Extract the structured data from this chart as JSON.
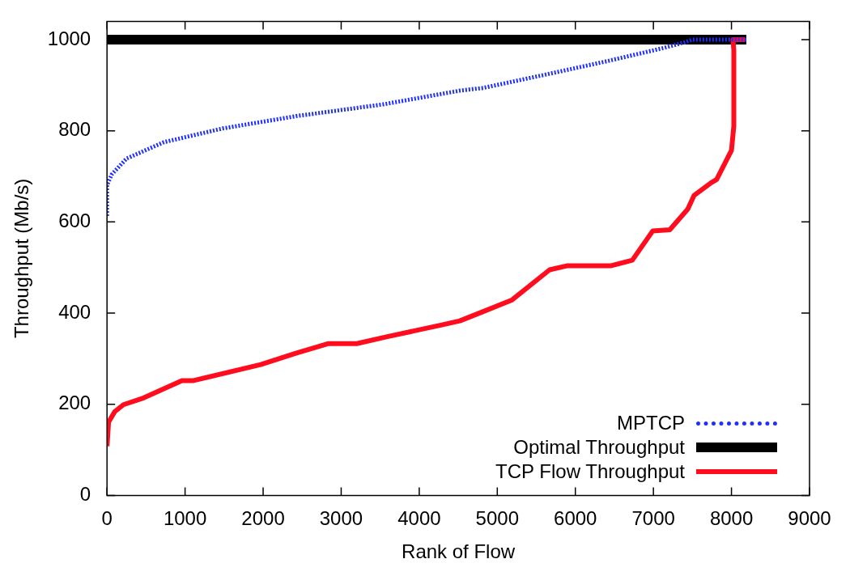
{
  "chart_data": {
    "type": "line",
    "xlabel": "Rank of Flow",
    "ylabel": "Throughput (Mb/s)",
    "xlim": [
      0,
      9000
    ],
    "xticks": [
      0,
      1000,
      2000,
      3000,
      4000,
      5000,
      6000,
      7000,
      8000,
      9000
    ],
    "ylim": [
      0,
      1040
    ],
    "yticks": [
      0,
      200,
      400,
      600,
      800,
      1000
    ],
    "grid": false,
    "legend": "bottom right",
    "series": [
      {
        "name": "MPTCP",
        "color": "#1f2fff",
        "line_style": "dotted",
        "x": [
          0,
          0,
          60,
          250,
          730,
          1480,
          2420,
          3540,
          4520,
          4820,
          5640,
          6390,
          7140,
          7400,
          7500,
          8200
        ],
        "values": [
          613,
          681,
          704,
          739,
          775,
          805,
          832,
          858,
          888,
          894,
          924,
          952,
          982,
          994,
          1000,
          1000
        ]
      },
      {
        "name": "Optimal Throughput",
        "color": "#000000",
        "line_style": "solid",
        "x": [
          0,
          8190
        ],
        "values": [
          1000,
          1000
        ]
      },
      {
        "name": "TCP Flow Throughput",
        "color": "#ff0d1f",
        "line_style": "solid",
        "x": [
          0,
          20,
          100,
          210,
          470,
          960,
          1110,
          1970,
          2420,
          2830,
          3200,
          3580,
          4290,
          4520,
          4800,
          5190,
          5670,
          5900,
          6460,
          6730,
          6990,
          7210,
          7440,
          7520,
          7740,
          7810,
          8000,
          8030,
          8030,
          8020,
          8170
        ],
        "values": [
          108,
          161,
          184,
          199,
          214,
          252,
          252,
          287,
          312,
          333,
          333,
          348,
          374,
          383,
          402,
          429,
          495,
          504,
          504,
          516,
          580,
          583,
          628,
          658,
          686,
          693,
          757,
          810,
          977,
          1000,
          1000
        ]
      }
    ]
  }
}
